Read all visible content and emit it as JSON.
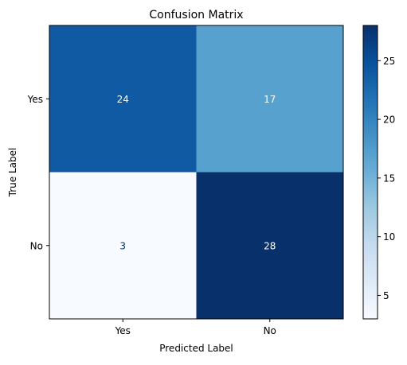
{
  "chart_data": {
    "type": "heatmap",
    "title": "Confusion Matrix",
    "xlabel": "Predicted Label",
    "ylabel": "True Label",
    "x_categories": [
      "Yes",
      "No"
    ],
    "y_categories": [
      "Yes",
      "No"
    ],
    "values": [
      [
        24,
        17
      ],
      [
        3,
        28
      ]
    ],
    "colormap": "Blues",
    "colorbar": {
      "vmin": 3,
      "vmax": 28,
      "ticks": [
        5,
        10,
        15,
        20,
        25
      ],
      "tick_labels": [
        "5",
        "10",
        "15",
        "20",
        "25"
      ]
    },
    "grid": false,
    "cell_text_colors": {
      "light": "#ffffff",
      "dark": "#08306b"
    }
  }
}
